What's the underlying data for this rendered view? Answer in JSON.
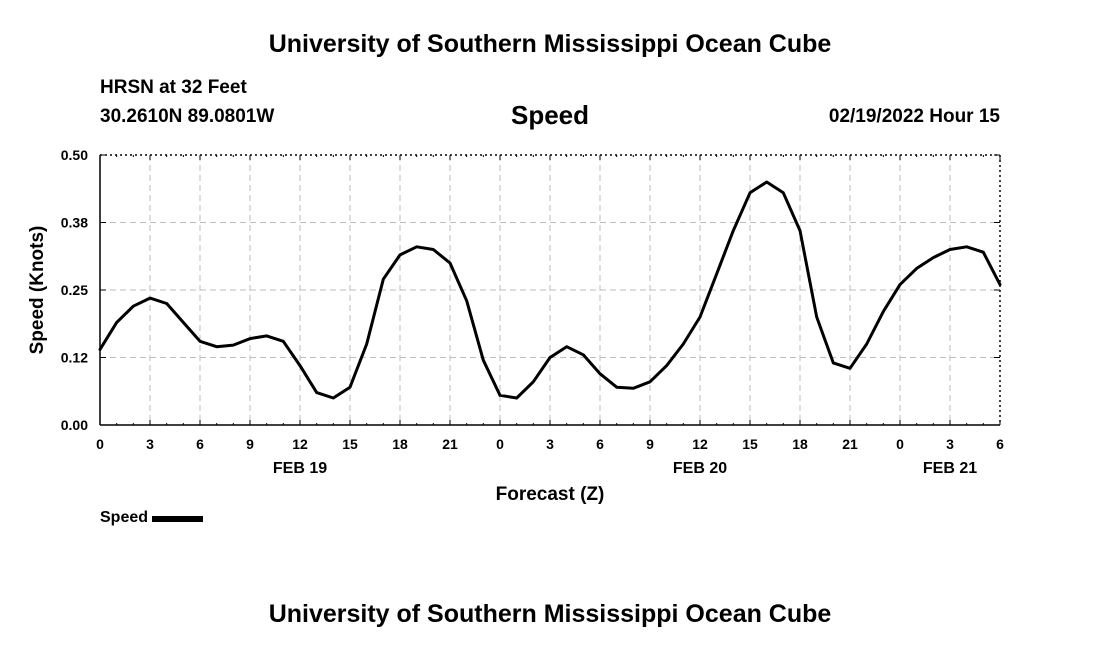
{
  "header": {
    "title": "University of Southern Mississippi Ocean Cube",
    "station": "HRSN at 32 Feet",
    "coords": "30.2610N  89.0801W",
    "variable": "Speed",
    "datetime": "02/19/2022 Hour 15"
  },
  "footer": {
    "title": "University of Southern Mississippi Ocean Cube"
  },
  "legend": {
    "label": "Speed"
  },
  "chart_data": {
    "type": "line",
    "title": "Speed",
    "xlabel": "Forecast (Z)",
    "ylabel": "Speed (Knots)",
    "ylim": [
      0,
      0.5
    ],
    "yticks": [
      "0.00",
      "0.12",
      "0.25",
      "0.38",
      "0.50"
    ],
    "xlim": [
      0,
      54
    ],
    "x_unit": "hours after 00Z FEB 19",
    "xtick_labels": [
      "0",
      "3",
      "6",
      "9",
      "12",
      "15",
      "18",
      "21",
      "0",
      "3",
      "6",
      "9",
      "12",
      "15",
      "18",
      "21",
      "0",
      "3",
      "6"
    ],
    "date_labels": [
      {
        "label": "FEB 19",
        "tick_index": 4
      },
      {
        "label": "FEB 20",
        "tick_index": 12
      },
      {
        "label": "FEB 21",
        "tick_index": 17
      }
    ],
    "grid": true,
    "legend_position": "bottom-left",
    "line_color": "#000000",
    "series": [
      {
        "name": "Speed",
        "x": [
          0,
          1,
          2,
          3,
          4,
          5,
          6,
          7,
          8,
          9,
          10,
          11,
          12,
          13,
          14,
          15,
          16,
          17,
          18,
          19,
          20,
          21,
          22,
          23,
          24,
          25,
          26,
          27,
          28,
          29,
          30,
          31,
          32,
          33,
          34,
          35,
          36,
          37,
          38,
          39,
          40,
          41,
          42,
          43,
          44,
          45,
          46,
          47,
          48,
          49,
          50,
          51,
          52,
          53,
          54
        ],
        "y": [
          0.14,
          0.19,
          0.22,
          0.235,
          0.225,
          0.19,
          0.155,
          0.145,
          0.148,
          0.16,
          0.165,
          0.155,
          0.11,
          0.06,
          0.05,
          0.07,
          0.15,
          0.27,
          0.315,
          0.33,
          0.325,
          0.3,
          0.23,
          0.12,
          0.055,
          0.05,
          0.08,
          0.125,
          0.145,
          0.13,
          0.095,
          0.07,
          0.068,
          0.08,
          0.11,
          0.15,
          0.2,
          0.28,
          0.36,
          0.43,
          0.45,
          0.43,
          0.36,
          0.2,
          0.115,
          0.105,
          0.15,
          0.21,
          0.26,
          0.29,
          0.31,
          0.325,
          0.33,
          0.32,
          0.26
        ]
      }
    ]
  }
}
